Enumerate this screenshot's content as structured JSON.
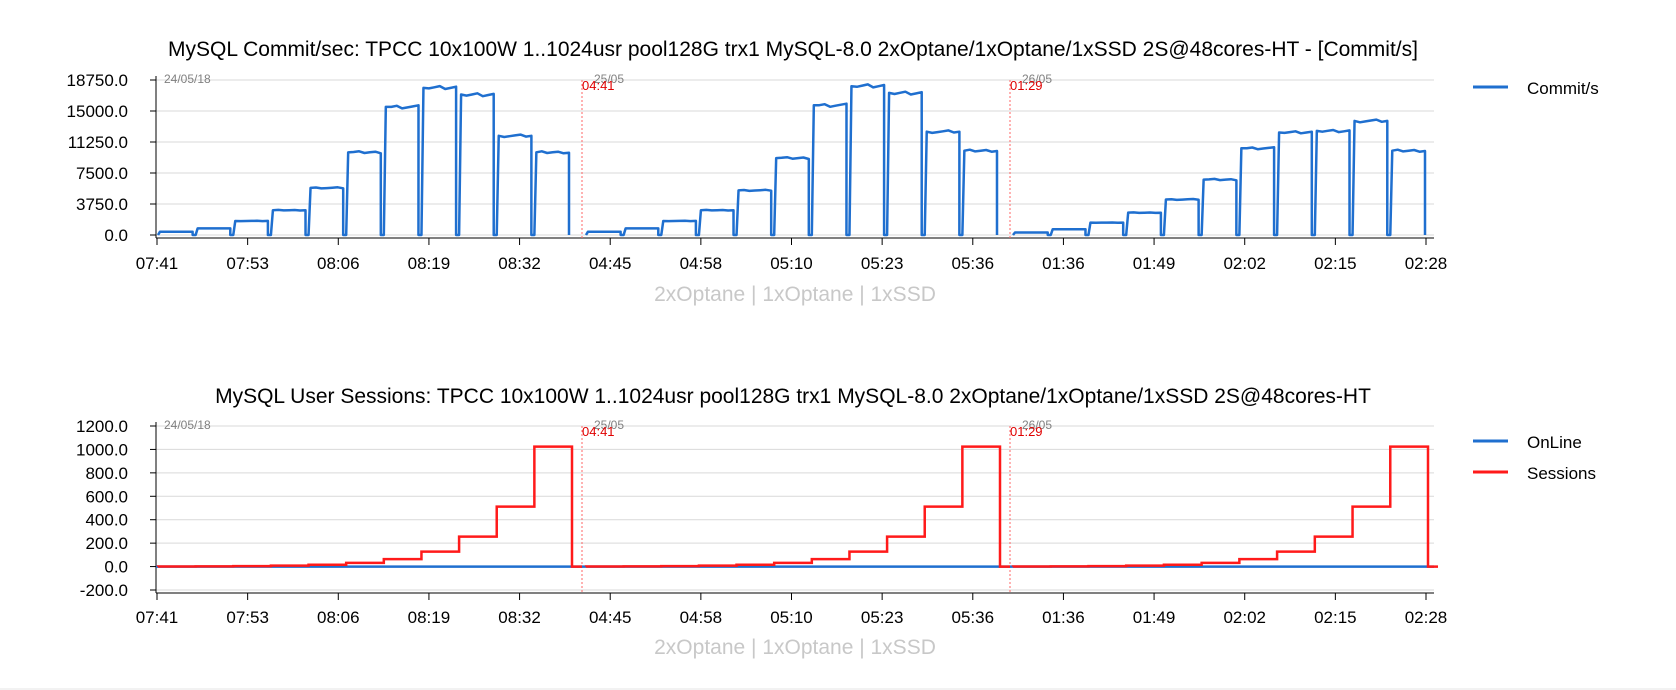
{
  "chart_data": [
    {
      "type": "line",
      "title": "MySQL Commit/sec: TPCC 10x100W 1..1024usr pool128G trx1 MySQL-8.0 2xOptane/1xOptane/1xSSD 2S@48cores-HT - [Commit/s]",
      "xlabel": "2xOptane | 1xOptane | 1xSSD",
      "ylabel": "",
      "ylim": [
        0,
        18750
      ],
      "yticks": [
        "18750.0",
        "15000.0",
        "11250.0",
        "7500.0",
        "3750.0",
        "0.0"
      ],
      "xticks": [
        "07:41",
        "07:53",
        "08:06",
        "08:19",
        "08:32",
        "04:45",
        "04:58",
        "05:10",
        "05:23",
        "05:36",
        "01:36",
        "01:49",
        "02:02",
        "02:15",
        "02:28"
      ],
      "date_labels": [
        "24/05/18",
        "25/05",
        "26/05"
      ],
      "separator_labels": [
        "04:41",
        "01:29"
      ],
      "grid": true,
      "legend_position": "right",
      "series": [
        {
          "name": "Commit/s",
          "color": "#1f6fcf",
          "steps": [
            {
              "run": 1,
              "values": [
                400,
                800,
                1700,
                3000,
                5700,
                10000,
                15500,
                17800,
                17000,
                12000,
                10000
              ]
            },
            {
              "run": 2,
              "values": [
                400,
                800,
                1700,
                3000,
                5400,
                9300,
                15700,
                18000,
                17200,
                12500,
                10200
              ]
            },
            {
              "run": 3,
              "values": [
                300,
                700,
                1500,
                2700,
                4300,
                6700,
                10500,
                12400,
                12600,
                13800,
                10200
              ]
            }
          ]
        }
      ]
    },
    {
      "type": "line",
      "title": "MySQL User Sessions: TPCC 10x100W 1..1024usr pool128G trx1 MySQL-8.0 2xOptane/1xOptane/1xSSD 2S@48cores-HT",
      "xlabel": "2xOptane | 1xOptane | 1xSSD",
      "ylabel": "",
      "ylim": [
        -200,
        1200
      ],
      "yticks": [
        "1200.0",
        "1000.0",
        "800.0",
        "600.0",
        "400.0",
        "200.0",
        "0.0",
        "-200.0"
      ],
      "xticks": [
        "07:41",
        "07:53",
        "08:06",
        "08:19",
        "08:32",
        "04:45",
        "04:58",
        "05:10",
        "05:23",
        "05:36",
        "01:36",
        "01:49",
        "02:02",
        "02:15",
        "02:28"
      ],
      "date_labels": [
        "24/05/18",
        "25/05",
        "26/05"
      ],
      "separator_labels": [
        "04:41",
        "01:29"
      ],
      "grid": true,
      "legend_position": "right",
      "series": [
        {
          "name": "OnLine",
          "color": "#1f6fcf",
          "values": [
            0,
            0,
            0
          ]
        },
        {
          "name": "Sessions",
          "color": "#ff1a1a",
          "levels": [
            1,
            2,
            4,
            8,
            16,
            32,
            64,
            128,
            256,
            512,
            1024
          ]
        }
      ]
    }
  ]
}
